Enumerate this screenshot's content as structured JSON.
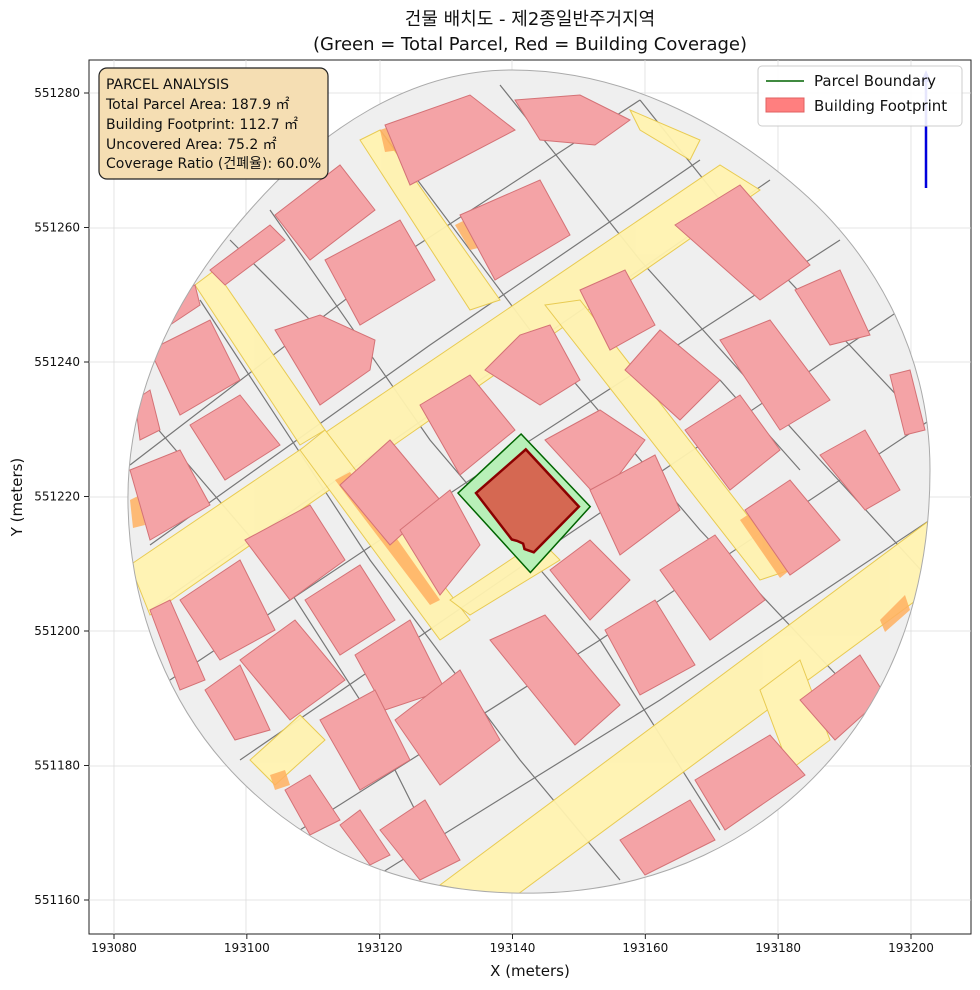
{
  "title_line1": "건물 배치도 - 제2종일반주거지역",
  "title_line2": "(Green = Total Parcel, Red = Building Coverage)",
  "xlabel": "X (meters)",
  "ylabel": "Y (meters)",
  "x_ticks": [
    "193080",
    "193100",
    "193120",
    "193140",
    "193160",
    "193180",
    "193200"
  ],
  "y_ticks": [
    "551280",
    "551260",
    "551240",
    "551220",
    "551200",
    "551180",
    "551160"
  ],
  "legend": {
    "parcel_label": "Parcel Boundary",
    "footprint_label": "Building Footprint"
  },
  "info_box": {
    "heading": "PARCEL ANALYSIS",
    "total_area": "Total Parcel Area: 187.9 ㎡",
    "footprint": "Building Footprint: 112.7 ㎡",
    "uncovered": "Uncovered Area: 75.2 ㎡",
    "coverage": "Coverage Ratio (건폐율): 60.0%"
  },
  "colors": {
    "parcel_edge": "#006400",
    "parcel_fill": "#b8f0b8",
    "target_building_fill": "#d9503f",
    "target_building_edge": "#8b0000",
    "building_fill": "#f4a3a6",
    "road_fill": "#fff3b0",
    "lot_fill": "#efefef",
    "info_box_fill": "#f5deb3",
    "north_arrow": "#0000dd"
  },
  "chart_data": {
    "type": "map",
    "xlim": [
      193077,
      193208
    ],
    "ylim": [
      551155,
      551285
    ],
    "grid": true,
    "legend_position": "top-right",
    "info_box_position": "top-left",
    "target_parcel": {
      "name": "Parcel Boundary",
      "polygon": [
        [
          193141.3,
          551229.3
        ],
        [
          193151.7,
          551218.5
        ],
        [
          193142.7,
          551208.7
        ],
        [
          193131.8,
          551220.5
        ]
      ]
    },
    "target_building": {
      "name": "Building Footprint",
      "polygon": [
        [
          193142.0,
          551227.0
        ],
        [
          193150.0,
          551218.5
        ],
        [
          193143.2,
          551211.7
        ],
        [
          193141.8,
          551212.2
        ],
        [
          193141.6,
          551213.0
        ],
        [
          193140.7,
          551213.4
        ],
        [
          193139.9,
          551213.6
        ],
        [
          193134.5,
          551220.5
        ]
      ]
    },
    "total_parcel_area_m2": 187.9,
    "building_footprint_m2": 112.7,
    "uncovered_area_m2": 75.2,
    "coverage_ratio_percent": 60.0
  }
}
